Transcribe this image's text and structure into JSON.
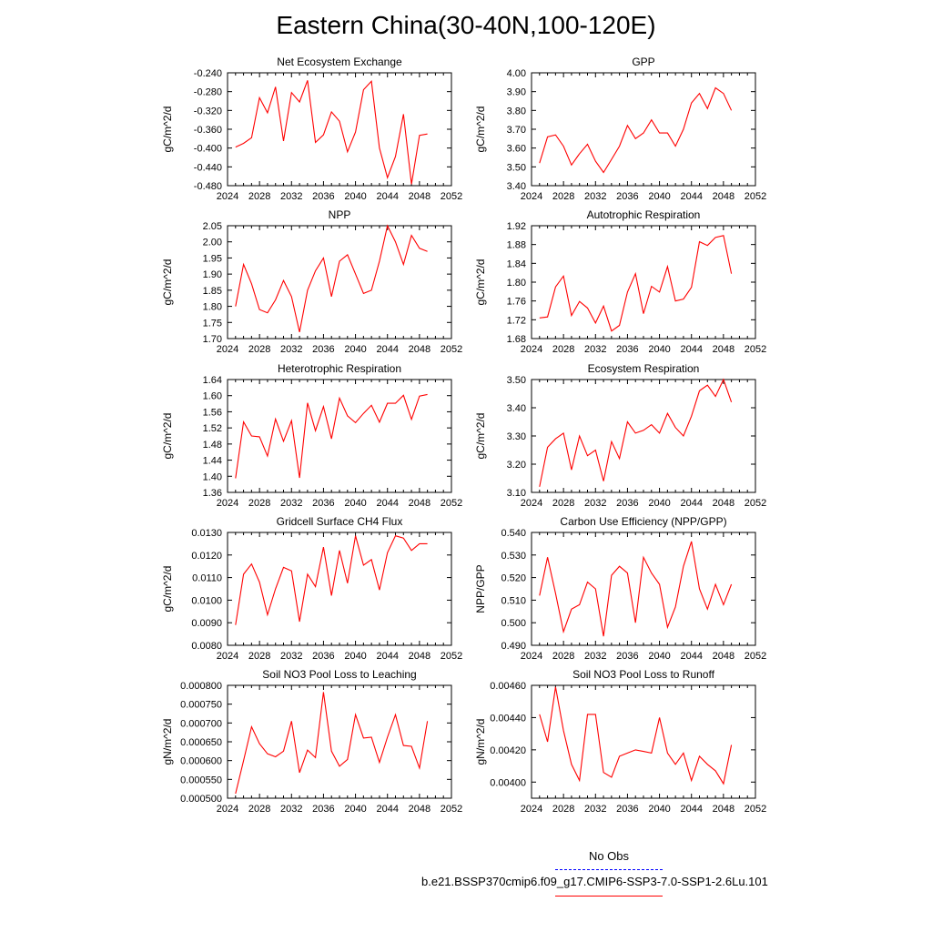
{
  "page": {
    "title": "Eastern China(30-40N,100-120E)"
  },
  "colors": {
    "series": "#ff0000",
    "obs": "#0000ff",
    "axis": "#000000"
  },
  "legend": {
    "obs_label": "No Obs",
    "case_label": "b.e21.BSSP370cmip6.f09_g17.CMIP6-SSP3-7.0-SSP1-2.6Lu.101"
  },
  "chart_data": [
    {
      "type": "line",
      "title": "Net Ecosystem Exchange",
      "ylabel": "gC/m^2/d",
      "xlim": [
        2024,
        2052
      ],
      "ylim": [
        -0.48,
        -0.24
      ],
      "yticks": [
        "-0.240",
        "-0.280",
        "-0.320",
        "-0.360",
        "-0.400",
        "-0.440",
        "-0.480"
      ],
      "xticks": [
        "2024",
        "2028",
        "2032",
        "2036",
        "2040",
        "2044",
        "2048",
        "2052"
      ],
      "x": [
        2025,
        2026,
        2027,
        2028,
        2029,
        2030,
        2031,
        2032,
        2033,
        2034,
        2035,
        2036,
        2037,
        2038,
        2039,
        2040,
        2041,
        2042,
        2043,
        2044,
        2045,
        2046,
        2047,
        2048,
        2049
      ],
      "values": [
        -0.398,
        -0.39,
        -0.378,
        -0.293,
        -0.325,
        -0.27,
        -0.385,
        -0.282,
        -0.302,
        -0.256,
        -0.388,
        -0.372,
        -0.323,
        -0.343,
        -0.408,
        -0.366,
        -0.276,
        -0.258,
        -0.4,
        -0.463,
        -0.418,
        -0.328,
        -0.477,
        -0.373,
        -0.37
      ]
    },
    {
      "type": "line",
      "title": "GPP",
      "ylabel": "gC/m^2/d",
      "xlim": [
        2024,
        2052
      ],
      "ylim": [
        3.4,
        4.0
      ],
      "yticks": [
        "4.00",
        "3.90",
        "3.80",
        "3.70",
        "3.60",
        "3.50",
        "3.40"
      ],
      "xticks": [
        "2024",
        "2028",
        "2032",
        "2036",
        "2040",
        "2044",
        "2048",
        "2052"
      ],
      "x": [
        2025,
        2026,
        2027,
        2028,
        2029,
        2030,
        2031,
        2032,
        2033,
        2034,
        2035,
        2036,
        2037,
        2038,
        2039,
        2040,
        2041,
        2042,
        2043,
        2044,
        2045,
        2046,
        2047,
        2048,
        2049
      ],
      "values": [
        3.52,
        3.66,
        3.67,
        3.61,
        3.51,
        3.57,
        3.62,
        3.53,
        3.47,
        3.54,
        3.61,
        3.72,
        3.65,
        3.68,
        3.75,
        3.68,
        3.68,
        3.61,
        3.7,
        3.84,
        3.89,
        3.81,
        3.92,
        3.89,
        3.8
      ]
    },
    {
      "type": "line",
      "title": "NPP",
      "ylabel": "gC/m^2/d",
      "xlim": [
        2024,
        2052
      ],
      "ylim": [
        1.7,
        2.05
      ],
      "yticks": [
        "2.05",
        "2.00",
        "1.95",
        "1.90",
        "1.85",
        "1.80",
        "1.75",
        "1.70"
      ],
      "xticks": [
        "2024",
        "2028",
        "2032",
        "2036",
        "2040",
        "2044",
        "2048",
        "2052"
      ],
      "x": [
        2025,
        2026,
        2027,
        2028,
        2029,
        2030,
        2031,
        2032,
        2033,
        2034,
        2035,
        2036,
        2037,
        2038,
        2039,
        2040,
        2041,
        2042,
        2043,
        2044,
        2045,
        2046,
        2047,
        2048,
        2049
      ],
      "values": [
        1.8,
        1.93,
        1.87,
        1.79,
        1.78,
        1.82,
        1.88,
        1.83,
        1.72,
        1.85,
        1.91,
        1.95,
        1.83,
        1.94,
        1.96,
        1.9,
        1.84,
        1.85,
        1.94,
        2.05,
        2.0,
        1.93,
        2.02,
        1.98,
        1.97
      ]
    },
    {
      "type": "line",
      "title": "Autotrophic Respiration",
      "ylabel": "gC/m^2/d",
      "xlim": [
        2024,
        2052
      ],
      "ylim": [
        1.68,
        1.92
      ],
      "yticks": [
        "1.92",
        "1.88",
        "1.84",
        "1.80",
        "1.76",
        "1.72",
        "1.68"
      ],
      "xticks": [
        "2024",
        "2028",
        "2032",
        "2036",
        "2040",
        "2044",
        "2048",
        "2052"
      ],
      "x": [
        2025,
        2026,
        2027,
        2028,
        2029,
        2030,
        2031,
        2032,
        2033,
        2034,
        2035,
        2036,
        2037,
        2038,
        2039,
        2040,
        2041,
        2042,
        2043,
        2044,
        2045,
        2046,
        2047,
        2048,
        2049
      ],
      "values": [
        1.724,
        1.726,
        1.79,
        1.813,
        1.729,
        1.759,
        1.745,
        1.713,
        1.749,
        1.696,
        1.708,
        1.779,
        1.818,
        1.733,
        1.791,
        1.779,
        1.833,
        1.76,
        1.764,
        1.789,
        1.886,
        1.878,
        1.895,
        1.899,
        1.818
      ]
    },
    {
      "type": "line",
      "title": "Heterotrophic Respiration",
      "ylabel": "gC/m^2/d",
      "xlim": [
        2024,
        2052
      ],
      "ylim": [
        1.36,
        1.64
      ],
      "yticks": [
        "1.64",
        "1.60",
        "1.56",
        "1.52",
        "1.48",
        "1.44",
        "1.40",
        "1.36"
      ],
      "xticks": [
        "2024",
        "2028",
        "2032",
        "2036",
        "2040",
        "2044",
        "2048",
        "2052"
      ],
      "x": [
        2025,
        2026,
        2027,
        2028,
        2029,
        2030,
        2031,
        2032,
        2033,
        2034,
        2035,
        2036,
        2037,
        2038,
        2039,
        2040,
        2041,
        2042,
        2043,
        2044,
        2045,
        2046,
        2047,
        2048,
        2049
      ],
      "values": [
        1.395,
        1.535,
        1.5,
        1.498,
        1.45,
        1.542,
        1.487,
        1.538,
        1.396,
        1.582,
        1.513,
        1.573,
        1.493,
        1.594,
        1.55,
        1.533,
        1.556,
        1.576,
        1.534,
        1.581,
        1.581,
        1.601,
        1.541,
        1.599,
        1.603
      ]
    },
    {
      "type": "line",
      "title": "Ecosystem Respiration",
      "ylabel": "gC/m^2/d",
      "xlim": [
        2024,
        2052
      ],
      "ylim": [
        3.1,
        3.5
      ],
      "yticks": [
        "3.50",
        "3.40",
        "3.30",
        "3.20",
        "3.10"
      ],
      "xticks": [
        "2024",
        "2028",
        "2032",
        "2036",
        "2040",
        "2044",
        "2048",
        "2052"
      ],
      "x": [
        2025,
        2026,
        2027,
        2028,
        2029,
        2030,
        2031,
        2032,
        2033,
        2034,
        2035,
        2036,
        2037,
        2038,
        2039,
        2040,
        2041,
        2042,
        2043,
        2044,
        2045,
        2046,
        2047,
        2048,
        2049
      ],
      "values": [
        3.12,
        3.26,
        3.29,
        3.31,
        3.18,
        3.3,
        3.23,
        3.25,
        3.14,
        3.28,
        3.22,
        3.35,
        3.31,
        3.32,
        3.34,
        3.31,
        3.38,
        3.33,
        3.3,
        3.37,
        3.46,
        3.48,
        3.44,
        3.5,
        3.42
      ]
    },
    {
      "type": "line",
      "title": "Gridcell Surface CH4 Flux",
      "ylabel": "gC/m^2/d",
      "xlim": [
        2024,
        2052
      ],
      "ylim": [
        0.008,
        0.013
      ],
      "yticks": [
        "0.0130",
        "0.0120",
        "0.0110",
        "0.0100",
        "0.0090",
        "0.0080"
      ],
      "xticks": [
        "2024",
        "2028",
        "2032",
        "2036",
        "2040",
        "2044",
        "2048",
        "2052"
      ],
      "x": [
        2025,
        2026,
        2027,
        2028,
        2029,
        2030,
        2031,
        2032,
        2033,
        2034,
        2035,
        2036,
        2037,
        2038,
        2039,
        2040,
        2041,
        2042,
        2043,
        2044,
        2045,
        2046,
        2047,
        2048,
        2049
      ],
      "values": [
        0.0089,
        0.01115,
        0.0116,
        0.0108,
        0.00935,
        0.0105,
        0.01145,
        0.0113,
        0.00905,
        0.01115,
        0.0106,
        0.01235,
        0.0102,
        0.0122,
        0.01075,
        0.01285,
        0.01155,
        0.0118,
        0.01045,
        0.0121,
        0.01285,
        0.01275,
        0.0122,
        0.0125,
        0.0125
      ]
    },
    {
      "type": "line",
      "title": "Carbon Use Efficiency (NPP/GPP)",
      "ylabel": "NPP/GPP",
      "xlim": [
        2024,
        2052
      ],
      "ylim": [
        0.49,
        0.54
      ],
      "yticks": [
        "0.540",
        "0.530",
        "0.520",
        "0.510",
        "0.500",
        "0.490"
      ],
      "xticks": [
        "2024",
        "2028",
        "2032",
        "2036",
        "2040",
        "2044",
        "2048",
        "2052"
      ],
      "x": [
        2025,
        2026,
        2027,
        2028,
        2029,
        2030,
        2031,
        2032,
        2033,
        2034,
        2035,
        2036,
        2037,
        2038,
        2039,
        2040,
        2041,
        2042,
        2043,
        2044,
        2045,
        2046,
        2047,
        2048,
        2049
      ],
      "values": [
        0.512,
        0.529,
        0.513,
        0.496,
        0.506,
        0.508,
        0.518,
        0.515,
        0.494,
        0.521,
        0.525,
        0.522,
        0.5,
        0.529,
        0.522,
        0.517,
        0.498,
        0.507,
        0.525,
        0.536,
        0.515,
        0.506,
        0.517,
        0.508,
        0.517
      ]
    },
    {
      "type": "line",
      "title": "Soil NO3 Pool Loss to Leaching",
      "ylabel": "gN/m^2/d",
      "xlim": [
        2024,
        2052
      ],
      "ylim": [
        0.0005,
        0.0008
      ],
      "yticks": [
        "0.000800",
        "0.000750",
        "0.000700",
        "0.000650",
        "0.000600",
        "0.000550",
        "0.000500"
      ],
      "xticks": [
        "2024",
        "2028",
        "2032",
        "2036",
        "2040",
        "2044",
        "2048",
        "2052"
      ],
      "x": [
        2025,
        2026,
        2027,
        2028,
        2029,
        2030,
        2031,
        2032,
        2033,
        2034,
        2035,
        2036,
        2037,
        2038,
        2039,
        2040,
        2041,
        2042,
        2043,
        2044,
        2045,
        2046,
        2047,
        2048,
        2049
      ],
      "values": [
        0.000512,
        0.0006,
        0.00069,
        0.000645,
        0.000618,
        0.00061,
        0.000625,
        0.000705,
        0.000568,
        0.000628,
        0.000608,
        0.000782,
        0.000625,
        0.000585,
        0.000603,
        0.000722,
        0.00066,
        0.000662,
        0.000595,
        0.000662,
        0.000722,
        0.00064,
        0.000638,
        0.00058,
        0.000705
      ]
    },
    {
      "type": "line",
      "title": "Soil NO3 Pool Loss to Runoff",
      "ylabel": "gN/m^2/d",
      "xlim": [
        2024,
        2052
      ],
      "ylim": [
        0.0039,
        0.0046
      ],
      "yticks": [
        "0.00460",
        "0.00440",
        "0.00420",
        "0.00400"
      ],
      "xticks": [
        "2024",
        "2028",
        "2032",
        "2036",
        "2040",
        "2044",
        "2048",
        "2052"
      ],
      "x": [
        2025,
        2026,
        2027,
        2028,
        2029,
        2030,
        2031,
        2032,
        2033,
        2034,
        2035,
        2036,
        2037,
        2038,
        2039,
        2040,
        2041,
        2042,
        2043,
        2044,
        2045,
        2046,
        2047,
        2048,
        2049
      ],
      "values": [
        0.00442,
        0.00425,
        0.00459,
        0.00432,
        0.00411,
        0.00401,
        0.00442,
        0.00442,
        0.00406,
        0.00403,
        0.00416,
        0.00418,
        0.0042,
        0.00419,
        0.00418,
        0.0044,
        0.00418,
        0.00411,
        0.00418,
        0.00401,
        0.00416,
        0.00411,
        0.00407,
        0.00399,
        0.00423
      ]
    }
  ]
}
